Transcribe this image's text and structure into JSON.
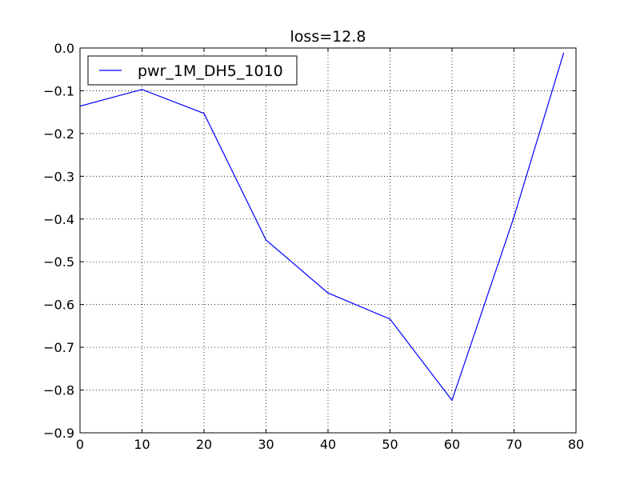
{
  "chart_data": {
    "type": "line",
    "title": "loss=12.8",
    "xlabel": "",
    "ylabel": "",
    "xlim": [
      0,
      80
    ],
    "ylim": [
      -0.9,
      0.0
    ],
    "xticks": [
      0,
      10,
      20,
      30,
      40,
      50,
      60,
      70,
      80
    ],
    "xtick_labels": [
      "0",
      "10",
      "20",
      "30",
      "40",
      "50",
      "60",
      "70",
      "80"
    ],
    "yticks": [
      0.0,
      -0.1,
      -0.2,
      -0.3,
      -0.4,
      -0.5,
      -0.6,
      -0.7,
      -0.8,
      -0.9
    ],
    "ytick_labels": [
      "0.0",
      "−0.1",
      "−0.2",
      "−0.3",
      "−0.4",
      "−0.5",
      "−0.6",
      "−0.7",
      "−0.8",
      "−0.9"
    ],
    "grid": true,
    "legend_position": "upper-left",
    "series": [
      {
        "name": "pwr_1M_DH5_1010",
        "color": "#0000ff",
        "x": [
          0,
          10,
          20,
          30,
          40,
          50,
          60,
          70,
          78
        ],
        "y": [
          -0.136,
          -0.097,
          -0.153,
          -0.449,
          -0.573,
          -0.634,
          -0.824,
          -0.395,
          -0.012
        ]
      }
    ]
  }
}
